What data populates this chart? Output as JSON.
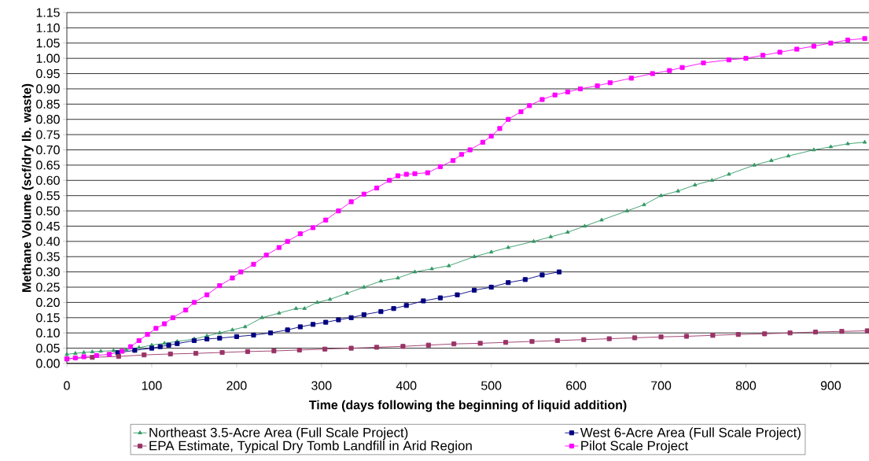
{
  "chart_data": {
    "type": "line",
    "xlabel": "Time (days following the beginning of liquid addition)",
    "ylabel": "Methane Volume (scf/dry lb. waste)",
    "xlim": [
      0,
      945
    ],
    "ylim": [
      0,
      1.15
    ],
    "xticks": [
      0,
      100,
      200,
      300,
      400,
      500,
      600,
      700,
      800,
      900
    ],
    "yticks": [
      {
        "value": 0,
        "label": "0.00"
      },
      {
        "value": 0.05,
        "label": "0.05"
      },
      {
        "value": 0.1,
        "label": "0.10"
      },
      {
        "value": 0.15,
        "label": "0.15"
      },
      {
        "value": 0.2,
        "label": "0.20"
      },
      {
        "value": 0.25,
        "label": "0.25"
      },
      {
        "value": 0.3,
        "label": "0.30"
      },
      {
        "value": 0.35,
        "label": "0.35"
      },
      {
        "value": 0.4,
        "label": "0.40"
      },
      {
        "value": 0.45,
        "label": "0.45"
      },
      {
        "value": 0.5,
        "label": "0.50"
      },
      {
        "value": 0.55,
        "label": "0.55"
      },
      {
        "value": 0.6,
        "label": "0.60"
      },
      {
        "value": 0.65,
        "label": "0.65"
      },
      {
        "value": 0.7,
        "label": "0.70"
      },
      {
        "value": 0.75,
        "label": "0.75"
      },
      {
        "value": 0.8,
        "label": "0.80"
      },
      {
        "value": 0.85,
        "label": "0.85"
      },
      {
        "value": 0.9,
        "label": "0.90"
      },
      {
        "value": 0.95,
        "label": "0.95"
      },
      {
        "value": 1.0,
        "label": "1.00"
      },
      {
        "value": 1.05,
        "label": "1.05"
      },
      {
        "value": 1.1,
        "label": "1.10"
      },
      {
        "value": 1.15,
        "label": "1.15"
      }
    ],
    "grid": "y",
    "legend": "bottom",
    "line_style": "solid",
    "series": [
      {
        "name": "Northeast 3.5-Acre Area (Full Scale Project)",
        "color": "#339966",
        "marker": "triangle",
        "x": [
          0,
          10,
          20,
          30,
          40,
          55,
          70,
          85,
          100,
          115,
          130,
          150,
          165,
          180,
          195,
          210,
          230,
          250,
          270,
          280,
          295,
          310,
          330,
          350,
          370,
          390,
          410,
          430,
          450,
          480,
          500,
          520,
          550,
          570,
          590,
          610,
          630,
          660,
          680,
          700,
          720,
          740,
          760,
          780,
          810,
          830,
          850,
          880,
          900,
          920,
          940
        ],
        "values": [
          0.03,
          0.033,
          0.036,
          0.038,
          0.04,
          0.042,
          0.045,
          0.052,
          0.06,
          0.066,
          0.072,
          0.08,
          0.09,
          0.1,
          0.11,
          0.12,
          0.15,
          0.165,
          0.18,
          0.18,
          0.2,
          0.21,
          0.23,
          0.25,
          0.27,
          0.28,
          0.3,
          0.31,
          0.32,
          0.35,
          0.365,
          0.38,
          0.4,
          0.415,
          0.43,
          0.45,
          0.47,
          0.5,
          0.52,
          0.55,
          0.565,
          0.585,
          0.6,
          0.62,
          0.65,
          0.665,
          0.68,
          0.7,
          0.71,
          0.72,
          0.725
        ]
      },
      {
        "name": "West 6-Acre Area (Full Scale Project)",
        "color": "#000080",
        "marker": "square",
        "x": [
          60,
          80,
          100,
          110,
          120,
          130,
          150,
          165,
          180,
          200,
          220,
          240,
          260,
          275,
          290,
          305,
          320,
          335,
          350,
          370,
          385,
          400,
          420,
          440,
          460,
          480,
          500,
          520,
          540,
          560,
          580
        ],
        "values": [
          0.035,
          0.043,
          0.05,
          0.055,
          0.06,
          0.065,
          0.075,
          0.08,
          0.083,
          0.088,
          0.093,
          0.1,
          0.11,
          0.12,
          0.128,
          0.135,
          0.143,
          0.15,
          0.16,
          0.17,
          0.18,
          0.19,
          0.205,
          0.215,
          0.225,
          0.24,
          0.25,
          0.265,
          0.275,
          0.29,
          0.3
        ]
      },
      {
        "name": "EPA Estimate, Typical Dry Tomb  Landfill in Arid Region",
        "color": "#993366",
        "marker": "square",
        "x": [
          0,
          30,
          61,
          91,
          122,
          152,
          183,
          213,
          244,
          274,
          304,
          335,
          365,
          396,
          426,
          456,
          487,
          517,
          548,
          578,
          609,
          639,
          669,
          700,
          730,
          761,
          791,
          822,
          852,
          882,
          913,
          943
        ],
        "values": [
          0.015,
          0.02,
          0.023,
          0.028,
          0.031,
          0.033,
          0.036,
          0.039,
          0.041,
          0.044,
          0.047,
          0.05,
          0.053,
          0.056,
          0.06,
          0.064,
          0.066,
          0.069,
          0.072,
          0.075,
          0.078,
          0.081,
          0.084,
          0.087,
          0.089,
          0.092,
          0.095,
          0.097,
          0.1,
          0.103,
          0.105,
          0.107
        ]
      },
      {
        "name": "Pilot Scale Project",
        "color": "#ff00ff",
        "marker": "square",
        "x": [
          0,
          10,
          20,
          35,
          50,
          65,
          75,
          85,
          95,
          105,
          115,
          125,
          140,
          150,
          165,
          180,
          195,
          205,
          220,
          235,
          250,
          260,
          275,
          290,
          305,
          320,
          335,
          350,
          365,
          380,
          390,
          400,
          410,
          425,
          440,
          455,
          465,
          475,
          490,
          500,
          510,
          520,
          535,
          545,
          560,
          575,
          590,
          605,
          625,
          640,
          665,
          690,
          710,
          725,
          750,
          780,
          800,
          820,
          840,
          860,
          880,
          900,
          920,
          940
        ],
        "values": [
          0.015,
          0.018,
          0.022,
          0.026,
          0.03,
          0.04,
          0.055,
          0.075,
          0.095,
          0.115,
          0.13,
          0.15,
          0.175,
          0.2,
          0.225,
          0.255,
          0.28,
          0.3,
          0.325,
          0.355,
          0.38,
          0.4,
          0.425,
          0.445,
          0.47,
          0.5,
          0.53,
          0.555,
          0.575,
          0.6,
          0.615,
          0.62,
          0.622,
          0.625,
          0.645,
          0.665,
          0.685,
          0.7,
          0.725,
          0.745,
          0.77,
          0.8,
          0.825,
          0.845,
          0.865,
          0.88,
          0.89,
          0.9,
          0.91,
          0.92,
          0.935,
          0.95,
          0.96,
          0.97,
          0.985,
          0.995,
          1.0,
          1.01,
          1.02,
          1.03,
          1.04,
          1.05,
          1.06,
          1.065
        ]
      }
    ]
  }
}
